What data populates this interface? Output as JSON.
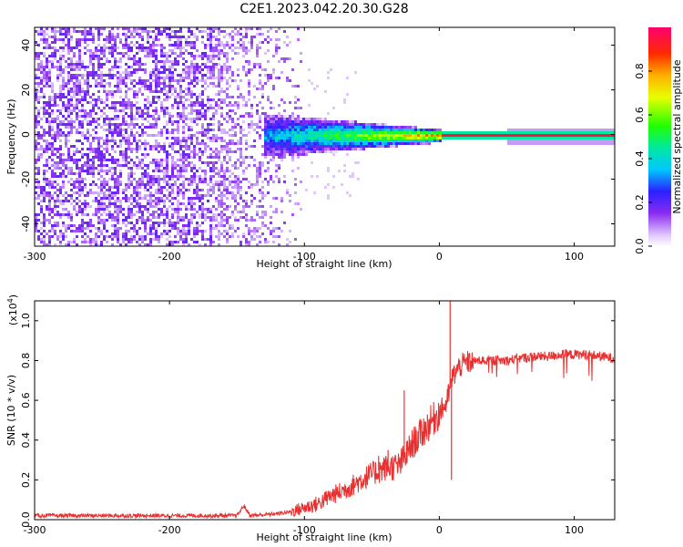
{
  "title": "C2E1.2023.042.20.30.G28",
  "chart_data": [
    {
      "type": "heatmap",
      "name": "spectrogram",
      "xlabel": "Height of straight line (km)",
      "ylabel": "Frequency (Hz)",
      "xlim": [
        -300,
        130
      ],
      "ylim": [
        -50,
        48
      ],
      "xticks": [
        -300,
        -200,
        -100,
        0,
        100
      ],
      "xtick_labels": [
        "-300",
        "-200",
        "-100",
        "0",
        "100"
      ],
      "yticks": [
        -40,
        -20,
        0,
        20,
        40
      ],
      "ytick_labels": [
        "-40",
        "-20",
        "0",
        "20",
        "40"
      ],
      "colorbar": {
        "label": "Normalized spectral amplitude",
        "range": [
          0,
          1
        ],
        "ticks": [
          0.0,
          0.2,
          0.4,
          0.6,
          0.8
        ],
        "tick_labels": [
          "0.0",
          "0.2",
          "0.4",
          "0.6",
          "0.8"
        ]
      },
      "regions": [
        {
          "x": [
            -300,
            -170
          ],
          "y": [
            -50,
            48
          ],
          "description": "scattered noise",
          "amplitude": [
            0.05,
            0.2
          ]
        },
        {
          "x": [
            -170,
            -100
          ],
          "y": [
            -50,
            48
          ],
          "description": "fading noise",
          "amplitude": [
            0.05,
            0.15
          ]
        },
        {
          "x": [
            -130,
            -10
          ],
          "y": [
            -10,
            10
          ],
          "description": "converging tone",
          "amplitude": [
            0.2,
            0.9
          ]
        },
        {
          "x": [
            0,
            130
          ],
          "y": [
            -1.5,
            1.5
          ],
          "description": "steady carrier",
          "amplitude": [
            0.9,
            1.0
          ]
        }
      ]
    },
    {
      "type": "line",
      "name": "snr",
      "xlabel": "Height of straight line (km)",
      "ylabel": "SNR (10 * v/v)",
      "yscale_label": "(x10",
      "yscale_exp": "4",
      "yscale_close": ")",
      "xlim": [
        -300,
        130
      ],
      "ylim": [
        0,
        1.1
      ],
      "xticks": [
        -300,
        -200,
        -100,
        0,
        100
      ],
      "xtick_labels": [
        "-300",
        "-200",
        "-100",
        "0",
        "100"
      ],
      "yticks": [
        0.0,
        0.2,
        0.4,
        0.6,
        0.8,
        1.0
      ],
      "ytick_labels": [
        "0.0",
        "0.2",
        "0.4",
        "0.6",
        "0.8",
        "1.0"
      ],
      "color": "#e83030",
      "series": [
        {
          "name": "SNR",
          "x": [
            -300,
            -250,
            -200,
            -150,
            -145,
            -140,
            -120,
            -110,
            -100,
            -90,
            -80,
            -70,
            -60,
            -50,
            -40,
            -30,
            -25,
            -20,
            -15,
            -10,
            -5,
            0,
            5,
            8,
            10,
            15,
            20,
            30,
            40,
            50,
            60,
            70,
            80,
            90,
            100,
            110,
            120,
            130
          ],
          "values": [
            0.02,
            0.02,
            0.02,
            0.02,
            0.07,
            0.02,
            0.03,
            0.04,
            0.06,
            0.08,
            0.12,
            0.15,
            0.19,
            0.23,
            0.26,
            0.27,
            0.32,
            0.38,
            0.42,
            0.46,
            0.5,
            0.54,
            0.58,
            0.66,
            0.72,
            0.77,
            0.79,
            0.8,
            0.8,
            0.8,
            0.81,
            0.82,
            0.82,
            0.83,
            0.83,
            0.83,
            0.82,
            0.81
          ]
        }
      ],
      "spikes": [
        {
          "x": 8,
          "value": 1.1
        },
        {
          "x": 9,
          "value": 0.2
        },
        {
          "x": -26,
          "value": 0.65
        },
        {
          "x": -38,
          "value": 0.35
        },
        {
          "x": -45,
          "value": 0.32
        }
      ]
    }
  ]
}
